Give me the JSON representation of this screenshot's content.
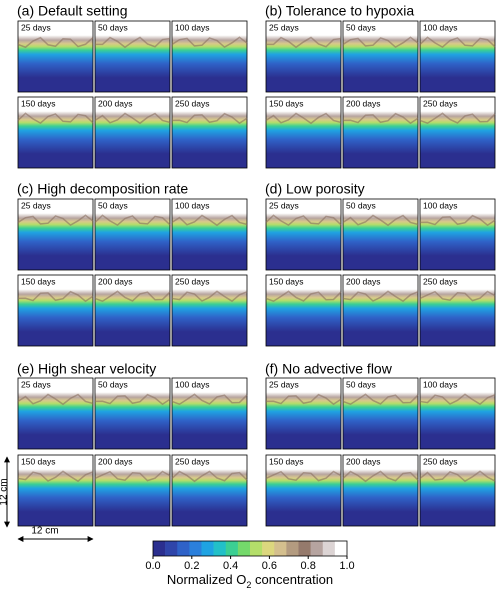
{
  "panels": [
    {
      "title": "(a) Default setting",
      "frames": [
        "25 days",
        "50 days",
        "100 days",
        "150 days",
        "200 days",
        "250 days"
      ]
    },
    {
      "title": "(b) Tolerance to hypoxia",
      "frames": [
        "25 days",
        "50 days",
        "100 days",
        "150 days",
        "200 days",
        "250 days"
      ]
    },
    {
      "title": "(c) High decomposition rate",
      "frames": [
        "25 days",
        "50 days",
        "100 days",
        "150 days",
        "200 days",
        "250 days"
      ]
    },
    {
      "title": "(d) Low porosity",
      "frames": [
        "25 days",
        "50 days",
        "100 days",
        "150 days",
        "200 days",
        "250 days"
      ]
    },
    {
      "title": "(e) High shear velocity",
      "frames": [
        "25 days",
        "50 days",
        "100 days",
        "150 days",
        "200 days",
        "250 days"
      ]
    },
    {
      "title": "(f) No advective flow",
      "frames": [
        "25 days",
        "50 days",
        "100 days",
        "150 days",
        "200 days",
        "250 days"
      ]
    }
  ],
  "scale": {
    "vertical": "12 cm",
    "horizontal": "12 cm"
  },
  "colorbar": {
    "label_main": "Normalized O",
    "label_sub": "2",
    "label_rest": " concentration",
    "lim": [
      0,
      1
    ],
    "ticks": [
      {
        "value": 0,
        "label": "0.0"
      },
      {
        "value": 0.2,
        "label": "0.2"
      },
      {
        "value": 0.4,
        "label": "0.4"
      },
      {
        "value": 0.6,
        "label": "0.6"
      },
      {
        "value": 0.8,
        "label": "0.8"
      },
      {
        "value": 1,
        "label": "1.0"
      }
    ],
    "colors": [
      "#2b2f8f",
      "#2f45aa",
      "#2f62c8",
      "#2b80dc",
      "#1fa3e2",
      "#22c0c8",
      "#3bcf93",
      "#74d96b",
      "#b4de6a",
      "#dcd77e",
      "#d4bf8e",
      "#b39b80",
      "#957a6c",
      "#b6a4a0",
      "#dcd4d4",
      "#ffffff"
    ]
  }
}
